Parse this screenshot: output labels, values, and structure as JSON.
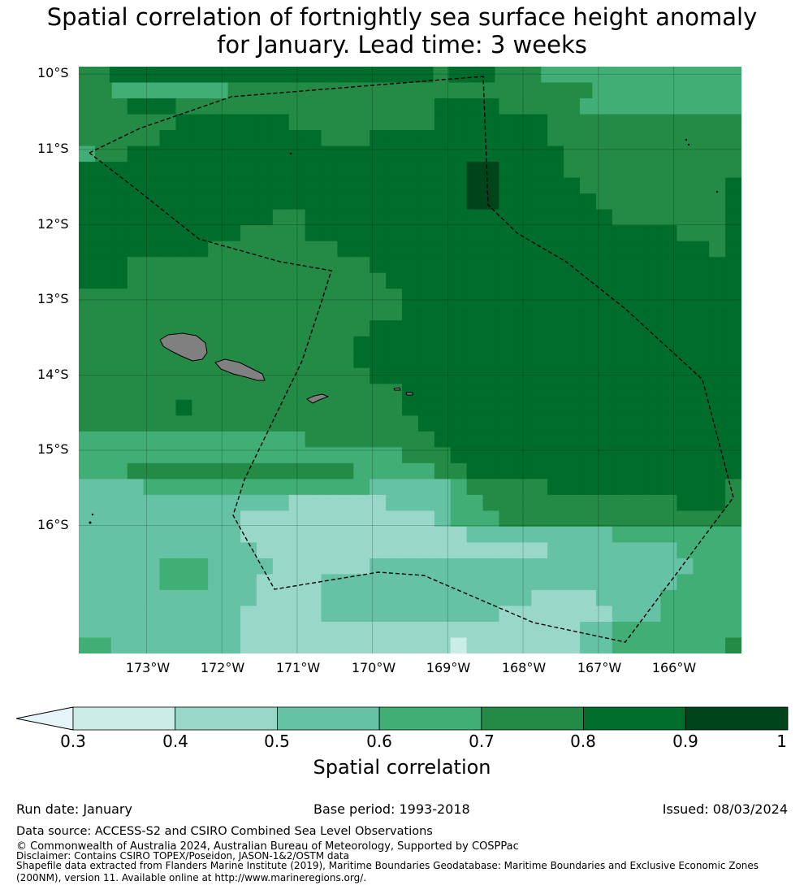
{
  "title_line1": "Spatial correlation of fortnightly sea surface height anomaly",
  "title_line2": "for January. Lead time: 3 weeks",
  "lat_labels": [
    "10°S",
    "11°S",
    "12°S",
    "13°S",
    "14°S",
    "15°S",
    "16°S"
  ],
  "lon_labels": [
    "173°W",
    "172°W",
    "171°W",
    "170°W",
    "169°W",
    "168°W",
    "167°W",
    "166°W"
  ],
  "map": {
    "lon_range": [
      -173.9,
      -165.1
    ],
    "lat_range": [
      -17.7,
      -9.9
    ],
    "land_color": "#808080",
    "boundary_style": "dashed black",
    "grid": true
  },
  "colorbar": {
    "title": "Spatial correlation",
    "ticks": [
      "0.3",
      "0.4",
      "0.5",
      "0.6",
      "0.7",
      "0.8",
      "0.9",
      "1"
    ],
    "bins": [
      {
        "range": [
          0.3,
          0.4
        ],
        "color": "#ccece6"
      },
      {
        "range": [
          0.4,
          0.5
        ],
        "color": "#99d8c9"
      },
      {
        "range": [
          0.5,
          0.6
        ],
        "color": "#66c2a4"
      },
      {
        "range": [
          0.6,
          0.7
        ],
        "color": "#41ae76"
      },
      {
        "range": [
          0.7,
          0.8
        ],
        "color": "#238b45"
      },
      {
        "range": [
          0.8,
          0.9
        ],
        "color": "#006d2c"
      },
      {
        "range": [
          0.9,
          1.0
        ],
        "color": "#00441b"
      }
    ],
    "under_color": "#e5f5f9"
  },
  "field": {
    "legend": "0-6 = bins 0.3-0.4 … 0.9-1.0",
    "rows": [
      "4455555555555555555555545554443333333333333",
      "4433333334444444444444444444444333333333",
      "44455544444444444444445555444443333333333",
      "44444455555554444444445555555444444444444",
      "44444555555555544455555555555444444444444",
      "34455555555555555555555555555544444444444",
      "55555555555555555555555566555544444444444",
      "55555555555555555555555566555554444444445",
      "55555555555555555555555566555555444444445",
      "55555555555544555555555555555555544444445",
      "55555555554444555555555555555555555554445",
      "55555555444444445555555555555555555555545",
      "55544444444444444455555555555555555555555",
      "55544444444444444445555555555555555555555",
      "44444444444444444444555555555555555555555",
      "44444444444444444444555555555555555555555",
      "44444444444444444455555555555555555555555",
      "44444444444444444555555555555555555555555",
      "44444444444444444555555555555555555555555",
      "44444444444444444455555555555555555555555",
      "44444444444444444444555555555555555555555",
      "44444454444444444444555555555555555555555",
      "44444444444444444444455555555555555555555",
      "33333333333333444444445555555555555555555",
      "33333333333333333333444555555555555555555",
      "33344444444444444333334455555555555555555",
      "22223333333333333322222344444555555555554",
      "22222222222221111112222334444444444445554",
      "22222222221111111111112333444444444444444",
      "22222222221111111111111122222222233333333",
      "22222222222111111111111111111222222223333",
      "22222333222211111122222222222222222222333",
      "22222333222111122222222222222222222223333",
      "22222222222111122222222222221111222233333",
      "22222222221111122222222222111111122233333",
      "22222222221111111111111111111112233333333",
      "33222222221111111111111011111112233333334"
    ]
  },
  "footer": {
    "run_date": "Run date: January",
    "base_period": "Base period: 1993-2018",
    "issued": "Issued: 08/03/2024",
    "data_source": "Data source: ACCESS-S2 and CSIRO Combined Sea Level Observations",
    "copyright": "© Commonwealth of Australia 2024, Australian Bureau of Meteorology, Supported by COSPPac",
    "disclaimer": "Disclaimer: Contains CSIRO TOPEX/Poseidon, JASON-1&2/OSTM data",
    "shapefile_1": "Shapefile data extracted from Flanders Marine Institute (2019), Maritime Boundaries Geodatabase: Maritime Boundaries and Exclusive Economic Zones",
    "shapefile_2": "(200NM), version 11. Available online at http://www.marineregions.org/."
  }
}
